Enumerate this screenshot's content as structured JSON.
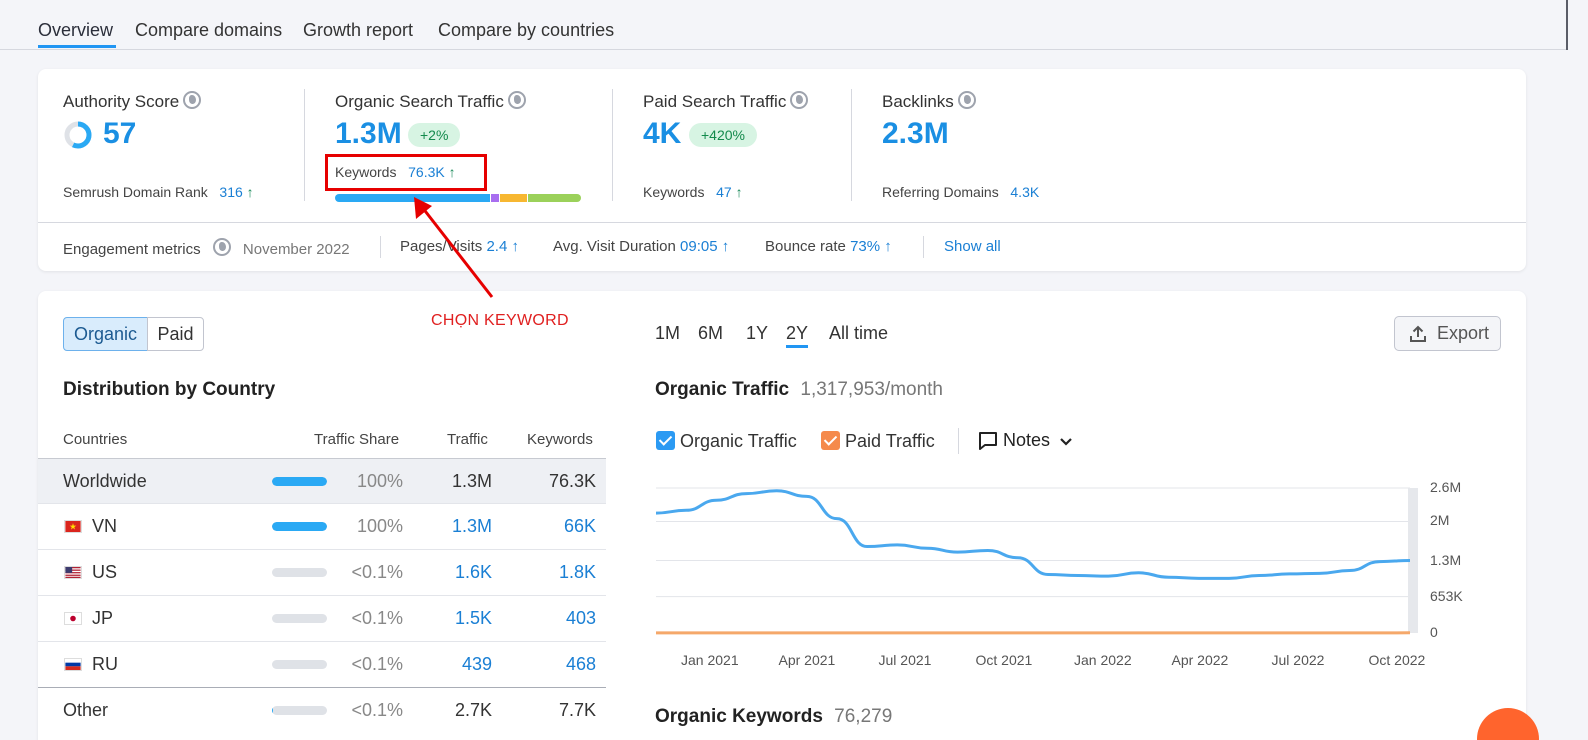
{
  "tabs": [
    "Overview",
    "Compare domains",
    "Growth report",
    "Compare by countries"
  ],
  "metrics": {
    "authority": {
      "label": "Authority Score",
      "value": "57",
      "sub_label": "Semrush Domain Rank",
      "sub_value": "316",
      "arrow": "↑"
    },
    "organic": {
      "label": "Organic Search Traffic",
      "value": "1.3M",
      "badge": "+2%",
      "sub_label": "Keywords",
      "sub_value": "76.3K",
      "arrow": "↑"
    },
    "paid": {
      "label": "Paid Search Traffic",
      "value": "4K",
      "badge": "+420%",
      "sub_label": "Keywords",
      "sub_value": "47",
      "arrow": "↑"
    },
    "backlinks": {
      "label": "Backlinks",
      "value": "2.3M",
      "sub_label": "Referring Domains",
      "sub_value": "4.3K"
    }
  },
  "keyword_bar_colors": [
    "#2aa9f4",
    "#a86ef0",
    "#f7b731",
    "#9bd15a"
  ],
  "engagement": {
    "label": "Engagement metrics",
    "date": "November 2022",
    "pages_visits_label": "Pages/Visits",
    "pages_visits": "2.4",
    "duration_label": "Avg. Visit Duration",
    "duration": "09:05",
    "bounce_label": "Bounce rate",
    "bounce": "73%",
    "arrow": "↑",
    "show_all": "Show all"
  },
  "annotation": {
    "text": "CHỌN KEYWORD"
  },
  "toggle": {
    "organic": "Organic",
    "paid": "Paid"
  },
  "distribution": {
    "title": "Distribution by Country",
    "headers": [
      "Countries",
      "Traffic Share",
      "Traffic",
      "Keywords"
    ],
    "rows": [
      {
        "country": "Worldwide",
        "share": "100%",
        "share_fill": 1.0,
        "traffic": "1.3M",
        "keywords": "76.3K"
      },
      {
        "country": "VN",
        "share": "100%",
        "share_fill": 1.0,
        "traffic": "1.3M",
        "keywords": "66K"
      },
      {
        "country": "US",
        "share": "<0.1%",
        "share_fill": 0.0,
        "traffic": "1.6K",
        "keywords": "1.8K"
      },
      {
        "country": "JP",
        "share": "<0.1%",
        "share_fill": 0.0,
        "traffic": "1.5K",
        "keywords": "403"
      },
      {
        "country": "RU",
        "share": "<0.1%",
        "share_fill": 0.0,
        "traffic": "439",
        "keywords": "468"
      },
      {
        "country": "Other",
        "share": "<0.1%",
        "share_fill": 0.02,
        "traffic": "2.7K",
        "keywords": "7.7K"
      }
    ]
  },
  "periods": [
    "1M",
    "6M",
    "1Y",
    "2Y",
    "All time"
  ],
  "selected_period": "2Y",
  "export_label": "Export",
  "organic_traffic": {
    "title": "Organic Traffic",
    "value": "1,317,953/month"
  },
  "legend": {
    "organic": "Organic Traffic",
    "paid": "Paid Traffic",
    "notes": "Notes"
  },
  "organic_keywords": {
    "title": "Organic Keywords",
    "value": "76,279"
  },
  "chart_data": {
    "type": "line",
    "x_ticks": [
      "Jan 2021",
      "Apr 2021",
      "Jul 2021",
      "Oct 2021",
      "Jan 2022",
      "Apr 2022",
      "Jul 2022",
      "Oct 2022"
    ],
    "y_ticks": [
      "2.6M",
      "2M",
      "1.3M",
      "653K",
      "0"
    ],
    "ylim": [
      0,
      2.6
    ],
    "series": [
      {
        "name": "Organic Traffic",
        "color": "#4aa8ee",
        "values": [
          2.15,
          2.2,
          2.38,
          2.5,
          2.55,
          2.45,
          2.05,
          1.55,
          1.58,
          1.52,
          1.45,
          1.48,
          1.35,
          1.05,
          1.03,
          1.02,
          1.08,
          1.0,
          0.98,
          0.98,
          1.03,
          1.06,
          1.07,
          1.12,
          1.28,
          1.3
        ]
      },
      {
        "name": "Paid Traffic",
        "color": "#f5a86a",
        "values": [
          0.002,
          0.002,
          0.002,
          0.002,
          0.002,
          0.002,
          0.002,
          0.002,
          0.002,
          0.002,
          0.002,
          0.002,
          0.002,
          0.002,
          0.002,
          0.002,
          0.002,
          0.002,
          0.002,
          0.002,
          0.002,
          0.002,
          0.002,
          0.002,
          0.002,
          0.004
        ]
      }
    ]
  }
}
